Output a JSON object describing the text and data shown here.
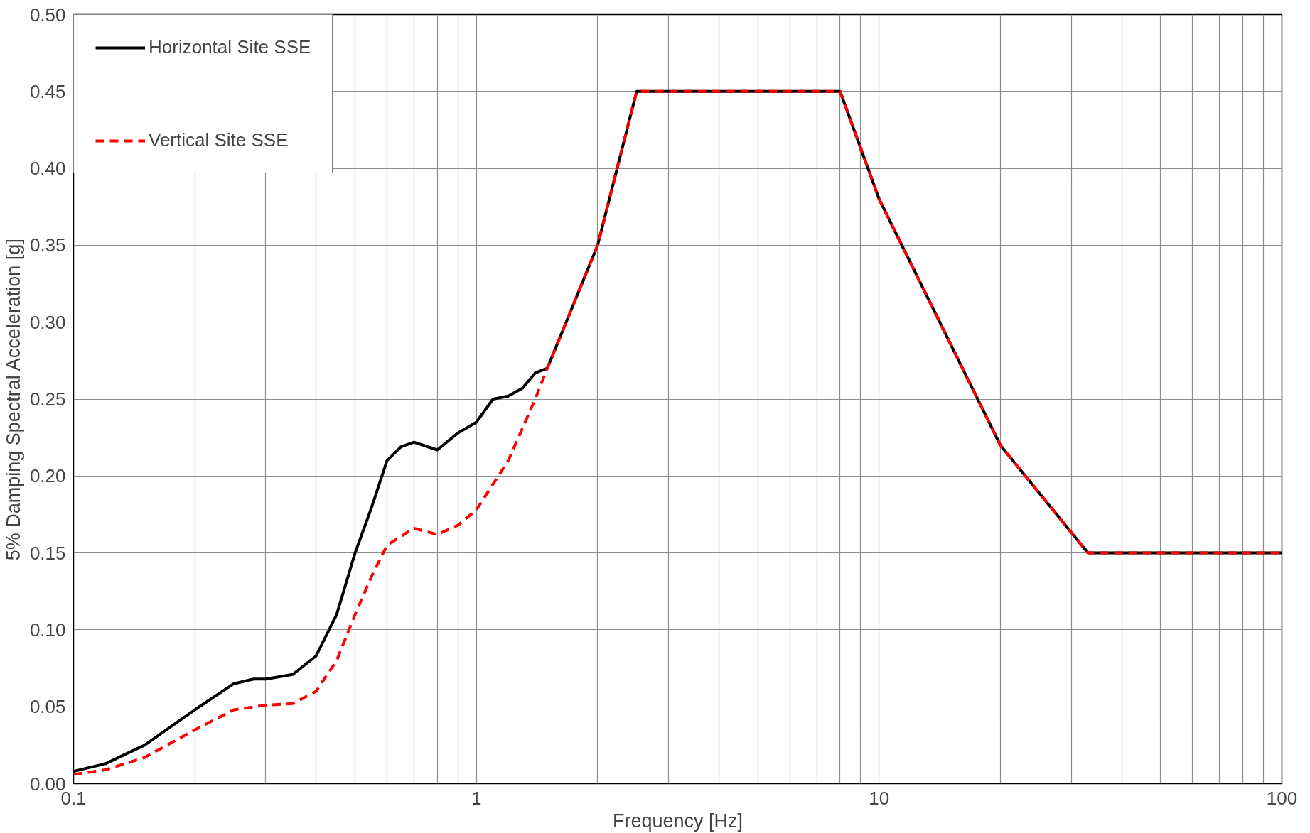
{
  "chart_data": {
    "type": "line",
    "xlabel": "Frequency [Hz]",
    "ylabel": "5% Damping Spectral Acceleration [g]",
    "log": "x",
    "grid": true,
    "legend": "top left",
    "marker": "none",
    "xlim": [
      0.1,
      100
    ],
    "ylim": [
      0,
      0.5
    ],
    "xticks": [
      0.1,
      {
        "value": 0.2,
        "label": null
      },
      {
        "value": 0.3,
        "label": null
      },
      {
        "value": 0.4,
        "label": null
      },
      {
        "value": 0.5,
        "label": null
      },
      {
        "value": 0.6,
        "label": null
      },
      {
        "value": 0.7,
        "label": null
      },
      {
        "value": 0.8,
        "label": null
      },
      {
        "value": 0.9,
        "label": null
      },
      1,
      {
        "value": 2,
        "label": null
      },
      {
        "value": 3,
        "label": null
      },
      {
        "value": 4,
        "label": null
      },
      {
        "value": 5,
        "label": null
      },
      {
        "value": 6,
        "label": null
      },
      {
        "value": 7,
        "label": null
      },
      {
        "value": 8,
        "label": null
      },
      {
        "value": 9,
        "label": null
      },
      10,
      {
        "value": 20,
        "label": null
      },
      {
        "value": 30,
        "label": null
      },
      {
        "value": 40,
        "label": null
      },
      {
        "value": 50,
        "label": null
      },
      {
        "value": 60,
        "label": null
      },
      {
        "value": 70,
        "label": null
      },
      {
        "value": 80,
        "label": null
      },
      {
        "value": 90,
        "label": null
      },
      100
    ],
    "yticks": [
      {
        "value": 0,
        "label": "0.00"
      },
      0.05,
      {
        "value": 0.1,
        "label": "0.10"
      },
      0.15,
      {
        "value": 0.2,
        "label": "0.20"
      },
      0.25,
      {
        "value": 0.3,
        "label": "0.30"
      },
      0.35,
      {
        "value": 0.4,
        "label": "0.40"
      },
      0.45,
      {
        "value": 0.5,
        "label": "0.50"
      }
    ],
    "series": [
      {
        "name": "Horizontal Site SSE",
        "color": "#000000",
        "line_style": "solid",
        "x": [
          0.1,
          0.12,
          0.15,
          0.2,
          0.25,
          0.28,
          0.3,
          0.35,
          0.4,
          0.45,
          0.5,
          0.55,
          0.6,
          0.65,
          0.7,
          0.8,
          0.9,
          1.0,
          1.1,
          1.2,
          1.3,
          1.4,
          1.5,
          2.0,
          2.5,
          8.0,
          10,
          20,
          33,
          100
        ],
        "values": [
          0.008,
          0.013,
          0.025,
          0.048,
          0.065,
          0.068,
          0.068,
          0.071,
          0.083,
          0.11,
          0.15,
          0.18,
          0.21,
          0.219,
          0.222,
          0.217,
          0.228,
          0.235,
          0.25,
          0.252,
          0.257,
          0.267,
          0.27,
          0.35,
          0.45,
          0.45,
          0.38,
          0.22,
          0.15,
          0.15
        ]
      },
      {
        "name": "Vertical Site SSE",
        "color": "#ff0000",
        "line_style": "dashed",
        "x": [
          0.1,
          0.12,
          0.15,
          0.2,
          0.25,
          0.3,
          0.35,
          0.4,
          0.45,
          0.5,
          0.55,
          0.6,
          0.7,
          0.8,
          0.9,
          1.0,
          1.2,
          1.4,
          1.5,
          2.0,
          2.5,
          8.0,
          10,
          20,
          33,
          100
        ],
        "values": [
          0.006,
          0.009,
          0.017,
          0.035,
          0.048,
          0.051,
          0.052,
          0.06,
          0.08,
          0.11,
          0.135,
          0.155,
          0.166,
          0.162,
          0.168,
          0.178,
          0.21,
          0.25,
          0.27,
          0.35,
          0.45,
          0.45,
          0.38,
          0.22,
          0.15,
          0.15
        ]
      }
    ]
  }
}
